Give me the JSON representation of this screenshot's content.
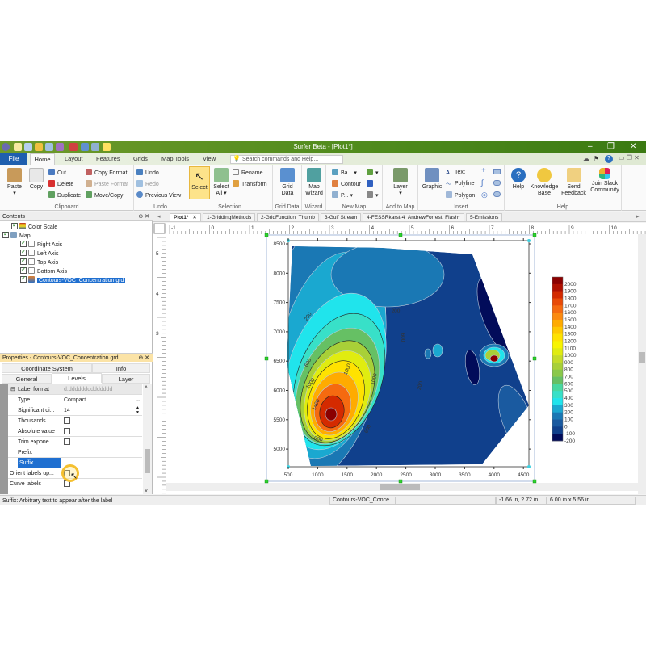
{
  "window": {
    "title": "Surfer Beta - [Plot1*]"
  },
  "ribbon_tabs": [
    "File",
    "Home",
    "Layout",
    "Features",
    "Grids",
    "Map Tools",
    "View"
  ],
  "search": {
    "placeholder": "Search commands and Help..."
  },
  "clipboard": {
    "paste": "Paste",
    "copy": "Copy",
    "cut": "Cut",
    "delete": "Delete",
    "duplicate": "Duplicate",
    "copy_format": "Copy Format",
    "paste_format": "Paste Format",
    "move_copy": "Move/Copy",
    "label": "Clipboard"
  },
  "undo": {
    "undo": "Undo",
    "redo": "Redo",
    "previous_view": "Previous View",
    "label": "Undo"
  },
  "selection": {
    "select": "Select",
    "select_all": "Select All",
    "rename": "Rename",
    "transform": "Transform",
    "label": "Selection"
  },
  "grid_data": {
    "grid_data": "Grid Data",
    "label": "Grid Data"
  },
  "wizard": {
    "map_wizard": "Map Wizard",
    "label": "Wizard"
  },
  "new_map": {
    "base": "Ba...",
    "contour": "Contour",
    "post": "P...",
    "label": "New Map"
  },
  "add_to_map": {
    "layer": "Layer",
    "label": "Add to Map"
  },
  "insert": {
    "graphic": "Graphic",
    "text": "Text",
    "polyline": "Polyline",
    "polygon": "Polygon",
    "label": "Insert"
  },
  "help": {
    "help": "Help",
    "knowledge_base": "Knowledge Base",
    "send_feedback": "Send Feedback",
    "join_slack": "Join Slack Community",
    "label": "Help"
  },
  "contents": {
    "title": "Contents",
    "items": [
      {
        "label": "Color Scale",
        "checked": true,
        "level": 1
      },
      {
        "label": "Map",
        "checked": true,
        "level": 0
      },
      {
        "label": "Right Axis",
        "checked": true,
        "level": 2
      },
      {
        "label": "Left Axis",
        "checked": true,
        "level": 2
      },
      {
        "label": "Top Axis",
        "checked": true,
        "level": 2
      },
      {
        "label": "Bottom Axis",
        "checked": true,
        "level": 2
      },
      {
        "label": "Contours-VOC_Concentration.grd",
        "checked": true,
        "level": 2,
        "selected": true
      }
    ]
  },
  "properties": {
    "title": "Properties - Contours-VOC_Concentration.grd",
    "tabs": [
      "Coordinate System",
      "Info",
      "General",
      "Levels",
      "Layer"
    ],
    "active_tab": "Levels",
    "rows": [
      {
        "key": "Label format",
        "value": "d.dddddddddddddd",
        "group": true
      },
      {
        "key": "Type",
        "value": "Compact"
      },
      {
        "key": "Significant di...",
        "value": "14"
      },
      {
        "key": "Thousands",
        "checkbox": false
      },
      {
        "key": "Absolute value",
        "checkbox": false
      },
      {
        "key": "Trim expone...",
        "checkbox": false
      },
      {
        "key": "Prefix",
        "value": ""
      },
      {
        "key": "Suffix",
        "value": "",
        "selected": true
      },
      {
        "key": "Orient labels up...",
        "checkbox": false,
        "outer": true
      },
      {
        "key": "Curve labels",
        "checkbox": false,
        "outer": true
      }
    ]
  },
  "doc_tabs": [
    "Plot1*",
    "1-GriddingMethods",
    "2-GridFunction_Thumb",
    "3-Gulf Stream",
    "4-FESSRkarst-4_AndrewForrest_Flash*",
    "5-Emissions"
  ],
  "ruler": {
    "top": [
      "-1",
      "0",
      "1",
      "2",
      "3",
      "4",
      "5",
      "6",
      "7",
      "8",
      "9",
      "10"
    ],
    "left": [
      "5",
      "4",
      "3"
    ]
  },
  "map": {
    "x_ticks": [
      "500",
      "1000",
      "1500",
      "2000",
      "2500",
      "3000",
      "3500",
      "4000",
      "4500"
    ],
    "y_ticks": [
      "8500",
      "8000",
      "7500",
      "7000",
      "6500",
      "6000",
      "5500",
      "5000"
    ],
    "contour_labels": [
      "200",
      "200",
      "600",
      "600",
      "1000",
      "1000",
      "1400",
      "1000",
      "200",
      "600",
      "1000"
    ],
    "color_scale": {
      "levels": [
        "2000",
        "1900",
        "1800",
        "1700",
        "1600",
        "1500",
        "1400",
        "1300",
        "1200",
        "1100",
        "1000",
        "900",
        "800",
        "700",
        "600",
        "500",
        "400",
        "300",
        "200",
        "100",
        "0",
        "-100",
        "-200"
      ],
      "colors": [
        "#8b0000",
        "#b01000",
        "#d42a00",
        "#e84a08",
        "#f56a10",
        "#fb8a10",
        "#ffab00",
        "#ffc800",
        "#ffe200",
        "#f8f400",
        "#e0ec10",
        "#c4dc28",
        "#a8d038",
        "#8ac84a",
        "#66c064",
        "#48d8a0",
        "#38e0c8",
        "#20e4ec",
        "#1aa8d0",
        "#1a78b4",
        "#1a5aa0",
        "#10408c",
        "#020c5a"
      ]
    }
  },
  "status": {
    "hint": "Suffix: Arbitrary text to appear after the label",
    "object": "Contours-VOC_Conce...",
    "cursor": "-1.66 in, 2.72 in",
    "size": "6.00 in x 5.56 in"
  }
}
